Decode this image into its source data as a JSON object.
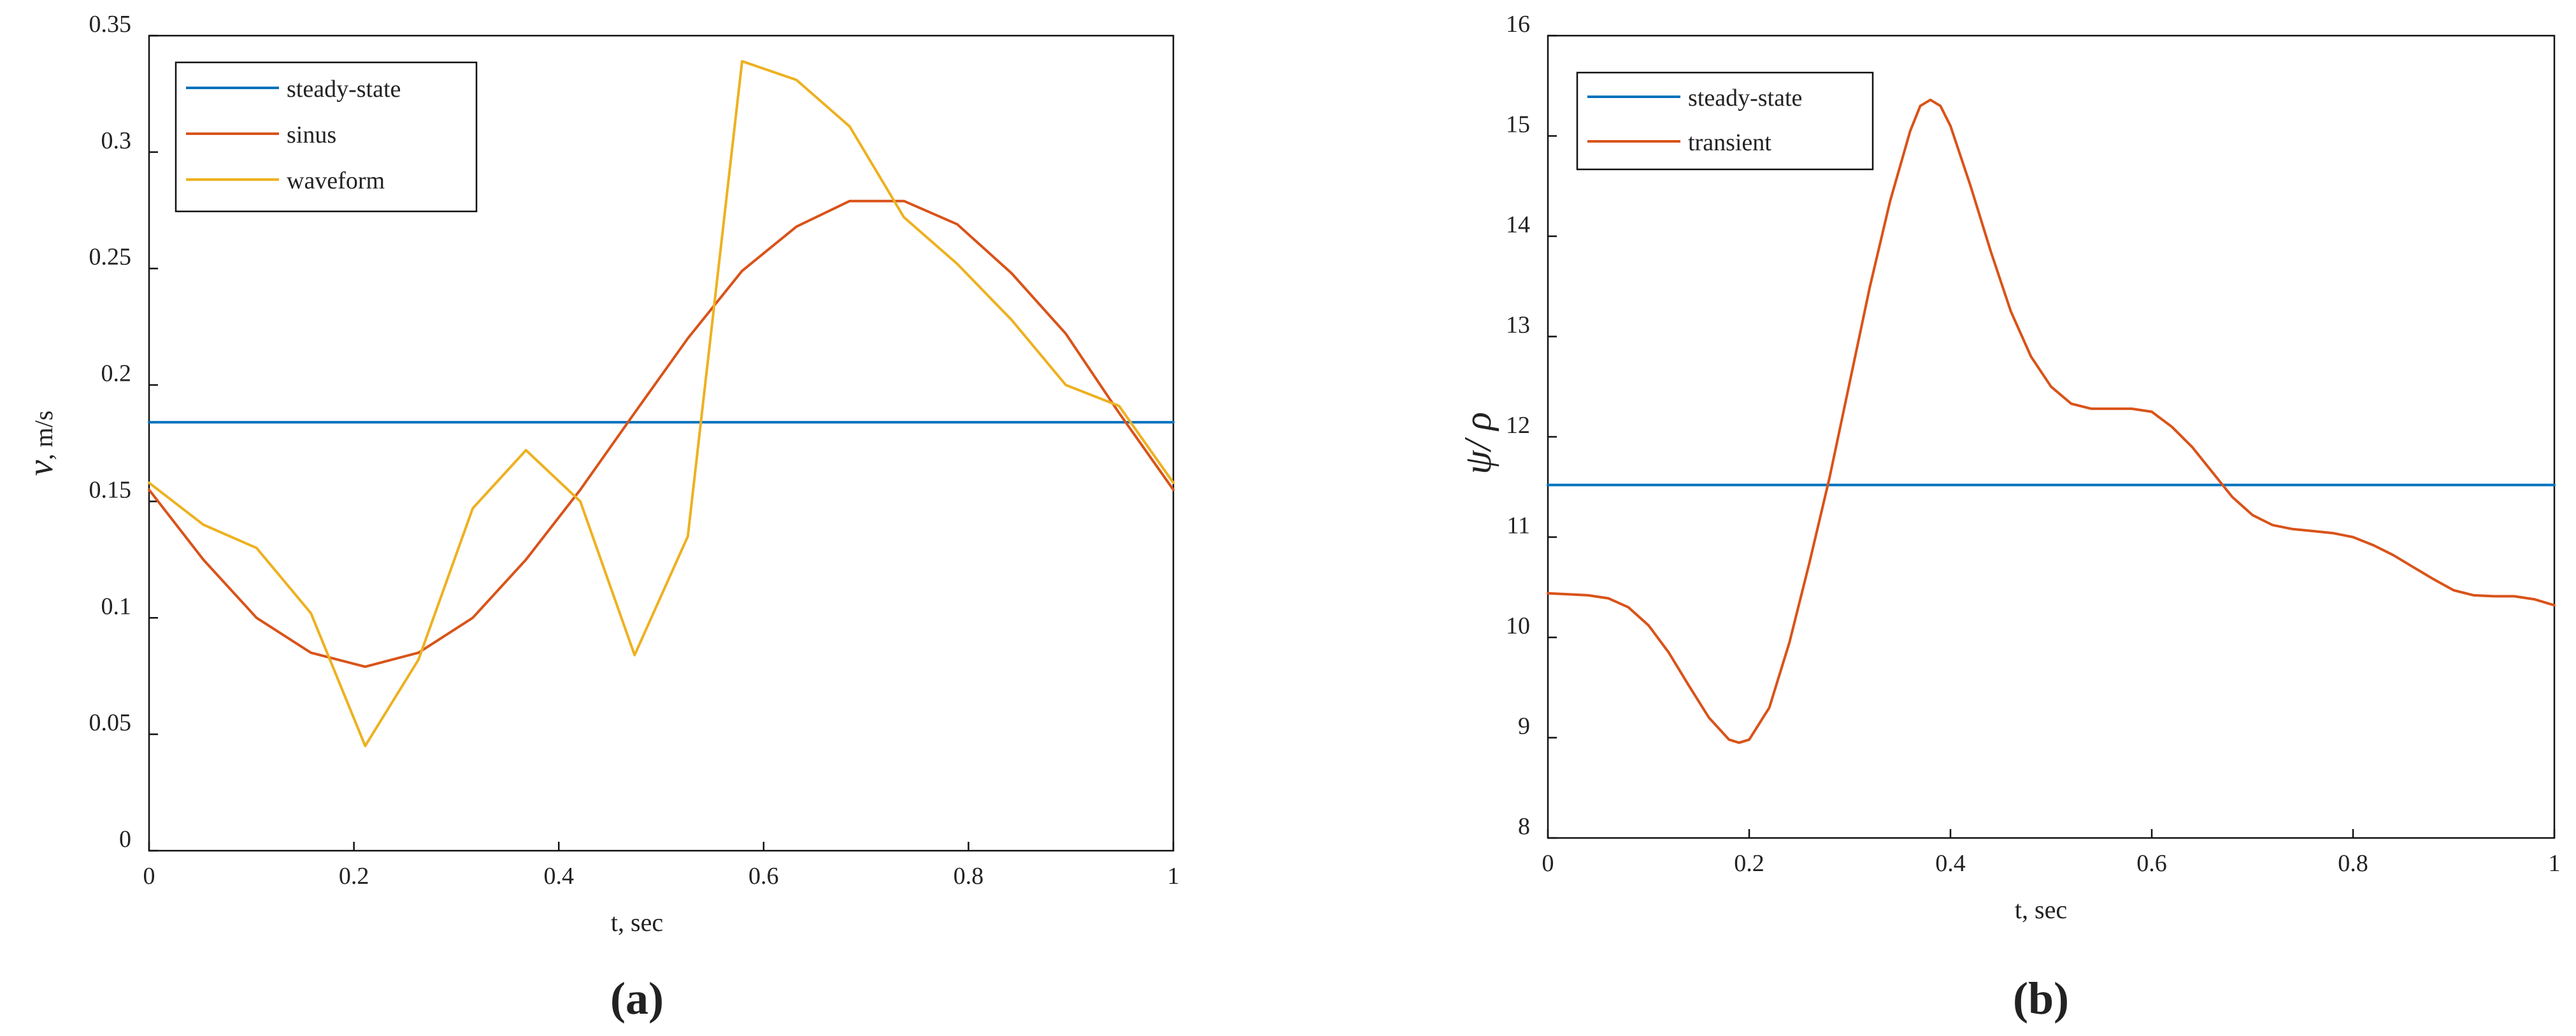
{
  "figure": {
    "panels": [
      {
        "label": "(a)",
        "xlabel": "t, sec",
        "ylabel": "v, m/s",
        "ylabel_symbol": "v",
        "ylabel_unit": ", m/s"
      },
      {
        "label": "(b)",
        "xlabel": "t, sec",
        "ylabel": "ψ/ρ",
        "ylabel_symbol": "ψ/ ρ"
      }
    ]
  },
  "chart_data": [
    {
      "type": "line",
      "title": "",
      "xlabel": "t, sec",
      "ylabel": "v, m/s",
      "xlim": [
        0,
        1
      ],
      "ylim": [
        0,
        0.35
      ],
      "xticks": [
        0,
        0.2,
        0.4,
        0.6,
        0.8,
        1
      ],
      "xtick_labels": [
        "0",
        "0.2",
        "0.4",
        "0.6",
        "0.8",
        "1"
      ],
      "yticks": [
        0,
        0.05,
        0.1,
        0.15,
        0.2,
        0.25,
        0.3,
        0.35
      ],
      "ytick_labels": [
        "0",
        "0.05",
        "0.1",
        "0.15",
        "0.2",
        "0.25",
        "0.3",
        "0.35"
      ],
      "grid": false,
      "legend": "top-left",
      "series": [
        {
          "name": "steady-state",
          "color": "#0072BD",
          "x": [
            0,
            1
          ],
          "y": [
            0.184,
            0.184
          ]
        },
        {
          "name": "sinus",
          "color": "#D95319",
          "x": [
            0,
            0.053,
            0.105,
            0.158,
            0.211,
            0.263,
            0.316,
            0.368,
            0.421,
            0.474,
            0.526,
            0.579,
            0.632,
            0.684,
            0.737,
            0.789,
            0.842,
            0.895,
            0.947,
            1.0
          ],
          "y": [
            0.155,
            0.125,
            0.1,
            0.085,
            0.079,
            0.085,
            0.1,
            0.125,
            0.155,
            0.188,
            0.22,
            0.249,
            0.268,
            0.279,
            0.279,
            0.269,
            0.248,
            0.222,
            0.188,
            0.155
          ]
        },
        {
          "name": "waveform",
          "color": "#EDB120",
          "x": [
            0,
            0.053,
            0.105,
            0.158,
            0.211,
            0.263,
            0.316,
            0.368,
            0.421,
            0.474,
            0.526,
            0.579,
            0.632,
            0.684,
            0.737,
            0.789,
            0.842,
            0.895,
            0.947,
            1.0
          ],
          "y": [
            0.158,
            0.14,
            0.13,
            0.102,
            0.045,
            0.082,
            0.147,
            0.172,
            0.15,
            0.084,
            0.135,
            0.339,
            0.331,
            0.311,
            0.272,
            0.252,
            0.228,
            0.2,
            0.191,
            0.158
          ]
        }
      ]
    },
    {
      "type": "line",
      "title": "",
      "xlabel": "t, sec",
      "ylabel": "ψ/ρ",
      "xlim": [
        0,
        1
      ],
      "ylim": [
        8,
        16
      ],
      "xticks": [
        0,
        0.2,
        0.4,
        0.6,
        0.8,
        1
      ],
      "xtick_labels": [
        "0",
        "0.2",
        "0.4",
        "0.6",
        "0.8",
        "1"
      ],
      "yticks": [
        8,
        9,
        10,
        11,
        12,
        13,
        14,
        15,
        16
      ],
      "ytick_labels": [
        "8",
        "9",
        "10",
        "11",
        "12",
        "13",
        "14",
        "15",
        "16"
      ],
      "grid": false,
      "legend": "top-left",
      "series": [
        {
          "name": "steady-state",
          "color": "#0072BD",
          "x": [
            0,
            1
          ],
          "y": [
            11.52,
            11.52
          ]
        },
        {
          "name": "transient",
          "color": "#D95319",
          "x": [
            0,
            0.02,
            0.04,
            0.06,
            0.08,
            0.1,
            0.12,
            0.14,
            0.16,
            0.18,
            0.19,
            0.2,
            0.22,
            0.24,
            0.26,
            0.28,
            0.3,
            0.32,
            0.34,
            0.36,
            0.37,
            0.38,
            0.39,
            0.4,
            0.42,
            0.44,
            0.46,
            0.48,
            0.5,
            0.52,
            0.54,
            0.56,
            0.58,
            0.6,
            0.62,
            0.64,
            0.66,
            0.68,
            0.7,
            0.72,
            0.74,
            0.76,
            0.78,
            0.8,
            0.82,
            0.84,
            0.86,
            0.88,
            0.9,
            0.92,
            0.94,
            0.96,
            0.98,
            1.0
          ],
          "y": [
            10.44,
            10.43,
            10.42,
            10.39,
            10.3,
            10.12,
            9.85,
            9.52,
            9.2,
            8.98,
            8.95,
            8.98,
            9.3,
            9.95,
            10.75,
            11.6,
            12.55,
            13.5,
            14.35,
            15.05,
            15.3,
            15.36,
            15.3,
            15.1,
            14.5,
            13.85,
            13.25,
            12.8,
            12.5,
            12.33,
            12.28,
            12.28,
            12.28,
            12.25,
            12.1,
            11.9,
            11.65,
            11.4,
            11.22,
            11.12,
            11.08,
            11.06,
            11.04,
            11.0,
            10.92,
            10.82,
            10.7,
            10.58,
            10.47,
            10.42,
            10.41,
            10.41,
            10.38,
            10.32
          ]
        }
      ]
    }
  ]
}
